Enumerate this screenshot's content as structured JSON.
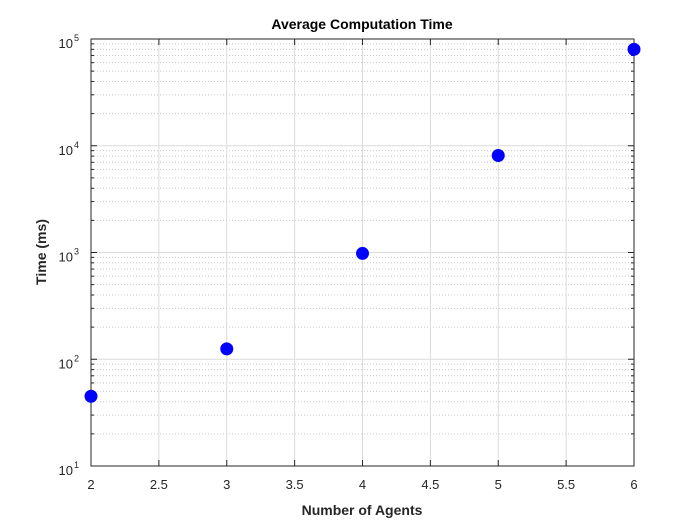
{
  "chart_data": {
    "type": "scatter",
    "title": "Average Computation Time",
    "xlabel": "Number of Agents",
    "ylabel": "Time (ms)",
    "xlim": [
      2,
      6
    ],
    "ylim": [
      10,
      100000
    ],
    "yscale": "log",
    "grid": true,
    "marker_color": "#0000ff",
    "x_ticks": [
      "2",
      "2.5",
      "3",
      "3.5",
      "4",
      "4.5",
      "5",
      "5.5",
      "6"
    ],
    "y_tick_base": "10",
    "y_tick_exponents": [
      "1",
      "2",
      "3",
      "4",
      "5"
    ],
    "points": [
      {
        "x": 2,
        "y": 45
      },
      {
        "x": 3,
        "y": 125
      },
      {
        "x": 4,
        "y": 980
      },
      {
        "x": 5,
        "y": 8100
      },
      {
        "x": 6,
        "y": 80000
      }
    ]
  }
}
